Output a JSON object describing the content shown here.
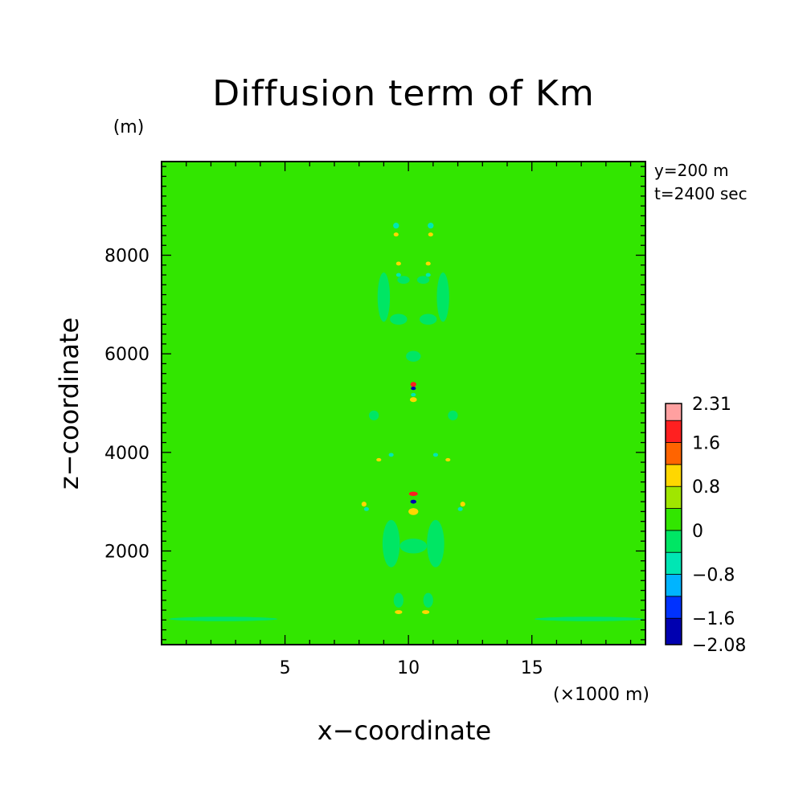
{
  "chart_data": {
    "type": "heatmap",
    "title": "Diffusion term of Km",
    "xlabel": "x−coordinate",
    "ylabel": "z−coordinate",
    "x_unit": "(×1000 m)",
    "y_unit": "(m)",
    "info_lines": [
      "y=200 m",
      "t=2400 sec"
    ],
    "xlim": [
      0,
      19.6
    ],
    "ylim": [
      100,
      9900
    ],
    "x_ticks": [
      {
        "value": 5,
        "label": "5"
      },
      {
        "value": 10,
        "label": "10"
      },
      {
        "value": 15,
        "label": "15"
      }
    ],
    "y_ticks": [
      {
        "value": 2000,
        "label": "2000"
      },
      {
        "value": 4000,
        "label": "4000"
      },
      {
        "value": 6000,
        "label": "6000"
      },
      {
        "value": 8000,
        "label": "8000"
      }
    ],
    "x_minor_step": 1,
    "y_minor_step": 200,
    "background_value": 0.1,
    "colorbar": {
      "levels": [
        -2.08,
        -1.6,
        -1.2,
        -0.8,
        -0.4,
        0,
        0.4,
        0.8,
        1.2,
        1.6,
        2.0,
        2.31
      ],
      "colors": [
        "#0000b0",
        "#0032ff",
        "#00b4ff",
        "#00e6b4",
        "#00e664",
        "#32e600",
        "#a0e600",
        "#ffd700",
        "#ff6400",
        "#ff2020",
        "#ffa0a0"
      ],
      "labels": [
        {
          "value": 2.31,
          "label": "2.31"
        },
        {
          "value": 1.6,
          "label": "1.6"
        },
        {
          "value": 0.8,
          "label": "0.8"
        },
        {
          "value": 0,
          "label": "0"
        },
        {
          "value": -0.8,
          "label": "−0.8"
        },
        {
          "value": -1.6,
          "label": "−1.6"
        },
        {
          "value": -2.08,
          "label": "−2.08"
        }
      ]
    },
    "anomalies": [
      {
        "x": 9.3,
        "z": 2150,
        "rx": 0.35,
        "rz": 480,
        "value": -0.3
      },
      {
        "x": 11.1,
        "z": 2150,
        "rx": 0.35,
        "rz": 480,
        "value": -0.3
      },
      {
        "x": 10.2,
        "z": 2100,
        "rx": 0.55,
        "rz": 150,
        "value": -0.3
      },
      {
        "x": 9.6,
        "z": 1000,
        "rx": 0.2,
        "rz": 150,
        "value": -0.3
      },
      {
        "x": 10.8,
        "z": 1000,
        "rx": 0.2,
        "rz": 150,
        "value": -0.3
      },
      {
        "x": 2.5,
        "z": 620,
        "rx": 2.2,
        "rz": 45,
        "value": -0.3
      },
      {
        "x": 17.3,
        "z": 620,
        "rx": 2.2,
        "rz": 45,
        "value": -0.3
      },
      {
        "x": 9.0,
        "z": 7150,
        "rx": 0.25,
        "rz": 500,
        "value": -0.3
      },
      {
        "x": 11.4,
        "z": 7150,
        "rx": 0.25,
        "rz": 500,
        "value": -0.3
      },
      {
        "x": 9.6,
        "z": 6700,
        "rx": 0.35,
        "rz": 110,
        "value": -0.3
      },
      {
        "x": 10.8,
        "z": 6700,
        "rx": 0.35,
        "rz": 110,
        "value": -0.3
      },
      {
        "x": 10.2,
        "z": 5950,
        "rx": 0.3,
        "rz": 110,
        "value": -0.3
      },
      {
        "x": 8.6,
        "z": 4750,
        "rx": 0.2,
        "rz": 100,
        "value": -0.3
      },
      {
        "x": 11.8,
        "z": 4750,
        "rx": 0.2,
        "rz": 100,
        "value": -0.3
      },
      {
        "x": 9.8,
        "z": 7500,
        "rx": 0.25,
        "rz": 80,
        "value": -0.3
      },
      {
        "x": 10.6,
        "z": 7500,
        "rx": 0.25,
        "rz": 80,
        "value": -0.3
      },
      {
        "x": 9.5,
        "z": 8600,
        "rx": 0.12,
        "rz": 60,
        "value": -0.7
      },
      {
        "x": 10.9,
        "z": 8600,
        "rx": 0.12,
        "rz": 60,
        "value": -0.7
      },
      {
        "x": 9.5,
        "z": 8420,
        "rx": 0.1,
        "rz": 40,
        "value": 0.9
      },
      {
        "x": 10.9,
        "z": 8420,
        "rx": 0.1,
        "rz": 40,
        "value": 0.9
      },
      {
        "x": 9.6,
        "z": 7830,
        "rx": 0.1,
        "rz": 40,
        "value": 0.9
      },
      {
        "x": 10.8,
        "z": 7830,
        "rx": 0.1,
        "rz": 40,
        "value": 0.9
      },
      {
        "x": 9.6,
        "z": 7600,
        "rx": 0.1,
        "rz": 40,
        "value": -0.7
      },
      {
        "x": 10.8,
        "z": 7600,
        "rx": 0.1,
        "rz": 40,
        "value": -0.7
      },
      {
        "x": 10.2,
        "z": 5380,
        "rx": 0.12,
        "rz": 50,
        "value": 1.7
      },
      {
        "x": 10.2,
        "z": 5300,
        "rx": 0.1,
        "rz": 35,
        "value": -1.7
      },
      {
        "x": 10.2,
        "z": 5070,
        "rx": 0.14,
        "rz": 50,
        "value": 0.9
      },
      {
        "x": 10.2,
        "z": 5170,
        "rx": 0.1,
        "rz": 35,
        "value": -0.7
      },
      {
        "x": 9.3,
        "z": 3950,
        "rx": 0.1,
        "rz": 40,
        "value": -0.7
      },
      {
        "x": 11.1,
        "z": 3950,
        "rx": 0.1,
        "rz": 40,
        "value": -0.7
      },
      {
        "x": 8.8,
        "z": 3850,
        "rx": 0.1,
        "rz": 35,
        "value": 0.9
      },
      {
        "x": 11.6,
        "z": 3850,
        "rx": 0.1,
        "rz": 35,
        "value": 0.9
      },
      {
        "x": 10.2,
        "z": 3160,
        "rx": 0.18,
        "rz": 45,
        "value": 1.9
      },
      {
        "x": 10.2,
        "z": 3000,
        "rx": 0.12,
        "rz": 40,
        "value": -1.7
      },
      {
        "x": 10.2,
        "z": 2800,
        "rx": 0.2,
        "rz": 70,
        "value": 0.9
      },
      {
        "x": 8.2,
        "z": 2950,
        "rx": 0.1,
        "rz": 50,
        "value": 0.9
      },
      {
        "x": 12.2,
        "z": 2950,
        "rx": 0.1,
        "rz": 50,
        "value": 0.9
      },
      {
        "x": 8.3,
        "z": 2850,
        "rx": 0.1,
        "rz": 40,
        "value": -0.7
      },
      {
        "x": 12.1,
        "z": 2850,
        "rx": 0.1,
        "rz": 40,
        "value": -0.7
      },
      {
        "x": 9.6,
        "z": 760,
        "rx": 0.15,
        "rz": 40,
        "value": 0.9
      },
      {
        "x": 10.7,
        "z": 760,
        "rx": 0.15,
        "rz": 40,
        "value": 0.9
      }
    ]
  }
}
